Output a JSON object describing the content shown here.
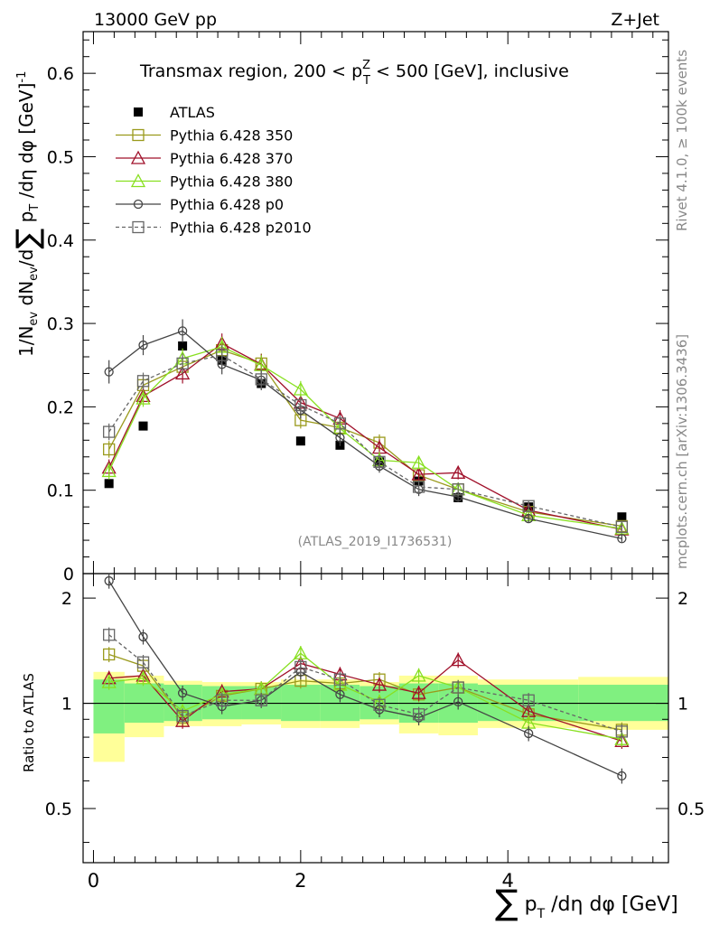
{
  "header": {
    "left": "13000 GeV pp",
    "right": "Z+Jet"
  },
  "side_labels": {
    "rivet": "Rivet 4.1.0, ≥ 100k events",
    "mcplots": "mcplots.cern.ch [arXiv:1306.3436]"
  },
  "main_title": "Transmax region, 200 < p_T^Z < 500 [GeV], inclusive",
  "analysis_id": "(ATLAS_2019_I1736531)",
  "axes": {
    "main_ylabel": "1/N_ev dN_ev/d ∑ p_T /dη dφ [GeV]^-1",
    "ratio_ylabel": "Ratio to ATLAS",
    "xlabel": "∑ p_T /dη dφ [GeV]",
    "main_yticks": [
      "0",
      "0.1",
      "0.2",
      "0.3",
      "0.4",
      "0.5",
      "0.6"
    ],
    "ratio_yticks": [
      "0.5",
      "1",
      "2"
    ],
    "xticks": [
      "0",
      "2",
      "4"
    ]
  },
  "colors": {
    "atlas": "#000000",
    "p350": "#9a9a1c",
    "p370": "#a0102a",
    "p380": "#88e020",
    "p0": "#444444",
    "p2010": "#666666",
    "band_inner": "#80f080",
    "band_outer": "#ffff99"
  },
  "chart_data": {
    "type": "scatter",
    "x": [
      0.15,
      0.48,
      0.86,
      1.24,
      1.62,
      2.0,
      2.38,
      2.76,
      3.14,
      3.52,
      4.2,
      5.1
    ],
    "xlim": [
      -0.1,
      5.55
    ],
    "main_ylim": [
      0,
      0.65
    ],
    "ratio_ylim": [
      0.35,
      2.35
    ],
    "ratio_scale": "log",
    "series": [
      {
        "name": "ATLAS",
        "key": "atlas",
        "style": "data",
        "values": [
          0.108,
          0.177,
          0.273,
          0.256,
          0.228,
          0.159,
          0.154,
          0.134,
          0.111,
          0.091,
          0.08,
          0.068
        ]
      },
      {
        "name": "Pythia 6.428 350",
        "key": "p350",
        "marker": "square",
        "dash": false,
        "values": [
          0.149,
          0.226,
          0.248,
          0.268,
          0.252,
          0.184,
          0.175,
          0.157,
          0.118,
          0.101,
          0.074,
          0.057
        ],
        "errors": [
          0.01,
          0.01,
          0.012,
          0.012,
          0.012,
          0.01,
          0.01,
          0.01,
          0.008,
          0.008,
          0.006,
          0.006
        ]
      },
      {
        "name": "Pythia 6.428 370",
        "key": "p370",
        "marker": "triangle",
        "dash": false,
        "values": [
          0.127,
          0.213,
          0.24,
          0.276,
          0.251,
          0.205,
          0.186,
          0.151,
          0.119,
          0.121,
          0.076,
          0.053
        ],
        "errors": [
          0.01,
          0.01,
          0.012,
          0.012,
          0.012,
          0.01,
          0.01,
          0.01,
          0.008,
          0.008,
          0.006,
          0.006
        ]
      },
      {
        "name": "Pythia 6.428 380",
        "key": "p380",
        "marker": "triangle",
        "dash": false,
        "values": [
          0.123,
          0.21,
          0.258,
          0.272,
          0.25,
          0.221,
          0.174,
          0.136,
          0.133,
          0.101,
          0.07,
          0.054
        ],
        "errors": [
          0.01,
          0.01,
          0.012,
          0.012,
          0.012,
          0.01,
          0.01,
          0.01,
          0.008,
          0.008,
          0.006,
          0.006
        ]
      },
      {
        "name": "Pythia 6.428 p0",
        "key": "p0",
        "marker": "circle",
        "dash": false,
        "values": [
          0.242,
          0.274,
          0.291,
          0.251,
          0.232,
          0.196,
          0.163,
          0.129,
          0.101,
          0.092,
          0.066,
          0.042
        ],
        "errors": [
          0.014,
          0.012,
          0.014,
          0.012,
          0.012,
          0.01,
          0.01,
          0.008,
          0.008,
          0.006,
          0.005,
          0.004
        ]
      },
      {
        "name": "Pythia 6.428 p2010",
        "key": "p2010",
        "marker": "square",
        "dash": true,
        "values": [
          0.17,
          0.231,
          0.252,
          0.262,
          0.233,
          0.202,
          0.18,
          0.134,
          0.104,
          0.101,
          0.081,
          0.056
        ],
        "errors": [
          0.01,
          0.01,
          0.012,
          0.012,
          0.012,
          0.01,
          0.01,
          0.008,
          0.008,
          0.008,
          0.006,
          0.006
        ]
      }
    ],
    "ratio_series": [
      {
        "key": "p350",
        "values": [
          1.38,
          1.28,
          0.91,
          1.05,
          1.1,
          1.16,
          1.14,
          1.17,
          1.06,
          1.11,
          0.93,
          0.84
        ]
      },
      {
        "key": "p370",
        "values": [
          1.18,
          1.2,
          0.89,
          1.08,
          1.1,
          1.3,
          1.21,
          1.13,
          1.07,
          1.33,
          0.95,
          0.78
        ]
      },
      {
        "key": "p380",
        "values": [
          1.15,
          1.18,
          0.95,
          1.06,
          1.1,
          1.39,
          1.13,
          1.01,
          1.2,
          1.11,
          0.88,
          0.79
        ]
      },
      {
        "key": "p0",
        "values": [
          2.24,
          1.55,
          1.07,
          0.98,
          1.02,
          1.23,
          1.06,
          0.96,
          0.91,
          1.01,
          0.82,
          0.62
        ]
      },
      {
        "key": "p2010",
        "values": [
          1.57,
          1.31,
          0.92,
          1.02,
          1.02,
          1.27,
          1.17,
          0.99,
          0.93,
          1.11,
          1.02,
          0.83
        ]
      }
    ],
    "band_inner": [
      [
        0.82,
        1.17
      ],
      [
        0.88,
        1.14
      ],
      [
        0.89,
        1.13
      ],
      [
        0.9,
        1.12
      ],
      [
        0.9,
        1.12
      ],
      [
        0.89,
        1.13
      ],
      [
        0.89,
        1.13
      ],
      [
        0.9,
        1.12
      ],
      [
        0.88,
        1.14
      ],
      [
        0.88,
        1.14
      ],
      [
        0.89,
        1.13
      ],
      [
        0.89,
        1.13
      ]
    ],
    "band_outer": [
      [
        0.68,
        1.23
      ],
      [
        0.8,
        1.2
      ],
      [
        0.86,
        1.16
      ],
      [
        0.86,
        1.15
      ],
      [
        0.87,
        1.15
      ],
      [
        0.85,
        1.17
      ],
      [
        0.85,
        1.17
      ],
      [
        0.87,
        1.15
      ],
      [
        0.82,
        1.2
      ],
      [
        0.81,
        1.2
      ],
      [
        0.85,
        1.17
      ],
      [
        0.84,
        1.19
      ]
    ],
    "band_edges": [
      0.0,
      0.3,
      0.68,
      1.05,
      1.43,
      1.81,
      2.19,
      2.57,
      2.95,
      3.33,
      3.71,
      4.68,
      5.55
    ]
  }
}
